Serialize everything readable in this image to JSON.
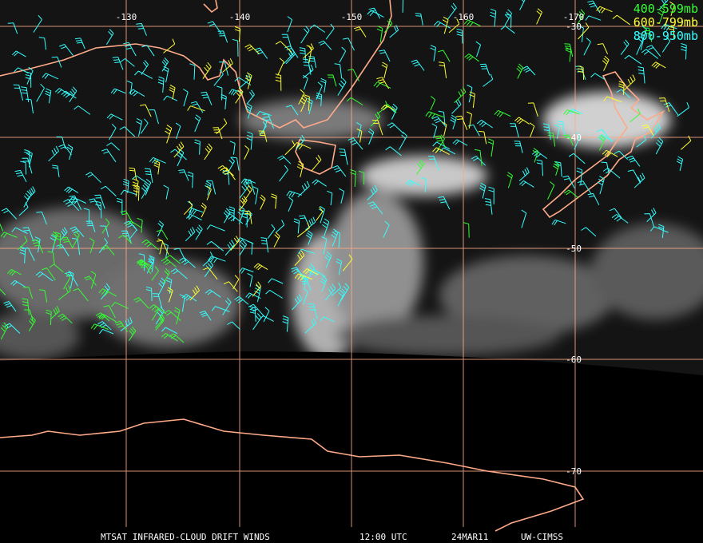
{
  "map": {
    "lon_labels": [
      "-130",
      "-140",
      "-150",
      "-160",
      "-170"
    ],
    "lat_labels": [
      "-30",
      "-40",
      "-50",
      "-60",
      "-70"
    ],
    "legend": [
      {
        "label": "400-599mb",
        "color": "#33ff33"
      },
      {
        "label": "600-799mb",
        "color": "#ffff33"
      },
      {
        "label": "800-950mb",
        "color": "#33ffff"
      }
    ],
    "footer": [
      "MTSAT INFRARED-CLOUD DRIFT WINDS",
      "12:00 UTC",
      "24MAR11",
      "UW-CIMSS"
    ]
  }
}
